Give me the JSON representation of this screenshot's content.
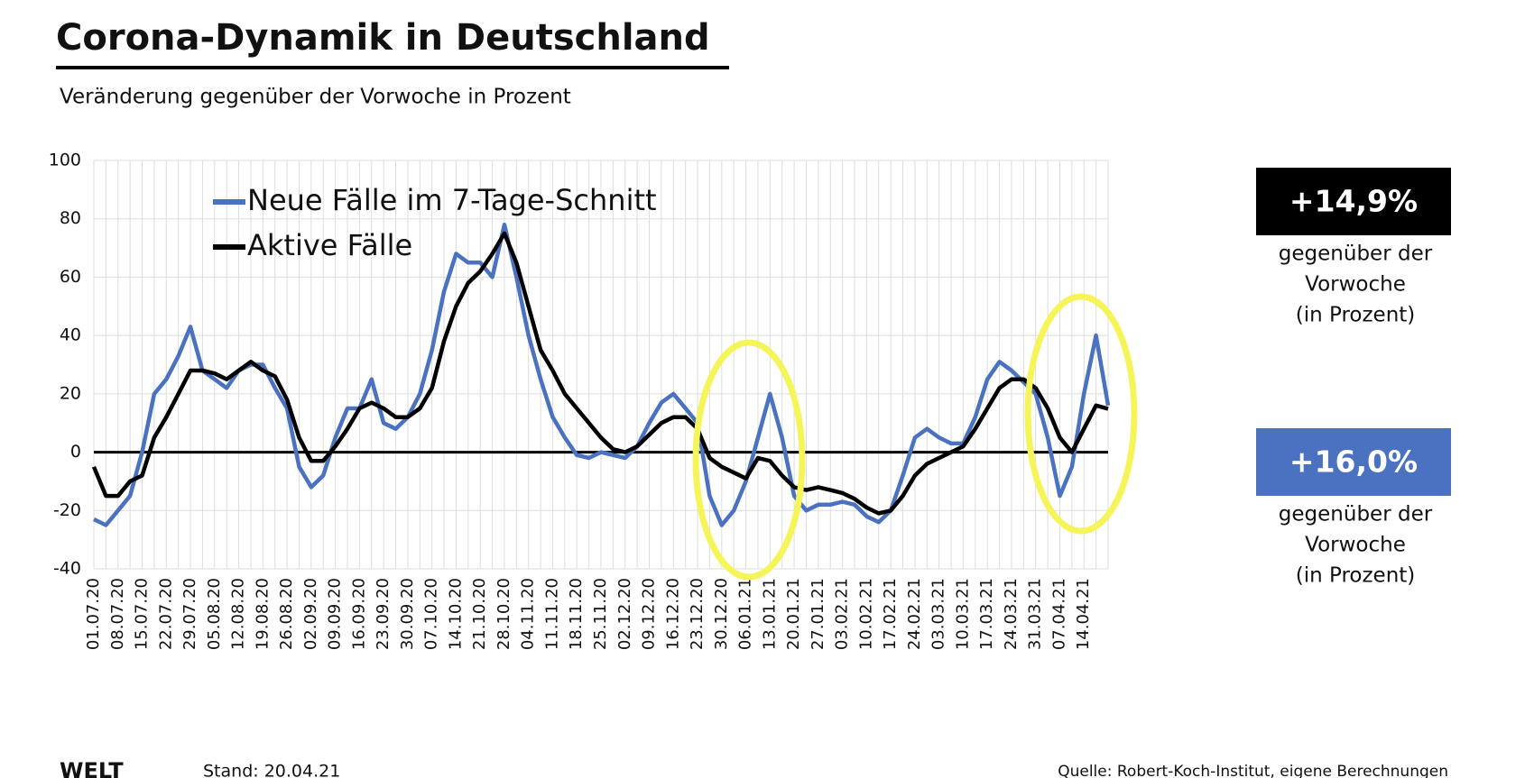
{
  "chart_data": {
    "type": "line",
    "title": "Corona-Dynamik in Deutschland",
    "subtitle": "Veränderung gegenüber der Vorwoche in Prozent",
    "categories": [
      "01.07.20",
      null,
      "08.07.20",
      null,
      "15.07.20",
      null,
      "22.07.20",
      null,
      "29.07.20",
      null,
      "05.08.20",
      null,
      "12.08.20",
      null,
      "19.08.20",
      null,
      "26.08.20",
      null,
      "02.09.20",
      null,
      "09.09.20",
      null,
      "16.09.20",
      null,
      "23.09.20",
      null,
      "30.09.20",
      null,
      "07.10.20",
      null,
      "14.10.20",
      null,
      "21.10.20",
      null,
      "28.10.20",
      null,
      "04.11.20",
      null,
      "11.11.20",
      null,
      "18.11.20",
      null,
      "25.11.20",
      null,
      "02.12.20",
      null,
      "09.12.20",
      null,
      "16.12.20",
      null,
      "23.12.20",
      null,
      "30.12.20",
      null,
      "06.01.21",
      null,
      "13.01.21",
      null,
      "20.01.21",
      null,
      "27.01.21",
      null,
      "03.02.21",
      null,
      "10.02.21",
      null,
      "17.02.21",
      null,
      "24.02.21",
      null,
      "03.03.21",
      null,
      "10.03.21",
      null,
      "17.03.21",
      null,
      "24.03.21",
      null,
      "31.03.21",
      null,
      "07.04.21",
      null,
      "14.04.21",
      null,
      null
    ],
    "series": [
      {
        "name": "Neue Fälle im 7-Tage-Schnitt",
        "color": "#4a72c0",
        "values": [
          -23,
          -25,
          -20,
          -15,
          0,
          20,
          25,
          33,
          43,
          28,
          25,
          22,
          28,
          30,
          30,
          22,
          15,
          -5,
          -12,
          -8,
          5,
          15,
          15,
          25,
          10,
          8,
          12,
          20,
          35,
          55,
          68,
          65,
          65,
          60,
          78,
          60,
          40,
          25,
          12,
          5,
          -1,
          -2,
          0,
          -1,
          -2,
          2,
          10,
          17,
          20,
          15,
          10,
          -15,
          -25,
          -20,
          -10,
          5,
          20,
          5,
          -15,
          -20,
          -18,
          -18,
          -17,
          -18,
          -22,
          -24,
          -20,
          -8,
          5,
          8,
          5,
          3,
          3,
          12,
          25,
          31,
          28,
          24,
          20,
          5,
          -15,
          -5,
          20,
          40,
          16
        ]
      },
      {
        "name": "Aktive Fälle",
        "color": "#000000",
        "values": [
          -5,
          -15,
          -15,
          -10,
          -8,
          5,
          12,
          20,
          28,
          28,
          27,
          25,
          28,
          31,
          28,
          26,
          18,
          5,
          -3,
          -3,
          2,
          8,
          15,
          17,
          15,
          12,
          12,
          15,
          22,
          38,
          50,
          58,
          62,
          68,
          75,
          65,
          50,
          35,
          28,
          20,
          15,
          10,
          5,
          1,
          0,
          2,
          6,
          10,
          12,
          12,
          8,
          -2,
          -5,
          -7,
          -9,
          -2,
          -3,
          -8,
          -12,
          -13,
          -12,
          -13,
          -14,
          -16,
          -19,
          -21,
          -20,
          -15,
          -8,
          -4,
          -2,
          0,
          2,
          8,
          15,
          22,
          25,
          25,
          22,
          15,
          5,
          0,
          8,
          16,
          14.9
        ]
      }
    ],
    "ylim": [
      -40,
      100
    ],
    "yticks": [
      -40,
      -20,
      0,
      20,
      40,
      60,
      80,
      100
    ],
    "grid": true,
    "annotations": [
      {
        "value": "+14,9%",
        "color": "#000000",
        "lines": [
          "gegenüber der",
          "Vorwoche",
          "(in Prozent)"
        ]
      },
      {
        "value": "+16,0%",
        "color": "#4a72c0",
        "lines": [
          "gegenüber der",
          "Vorwoche",
          "(in Prozent)"
        ]
      }
    ]
  },
  "footer": {
    "brand": "WELT",
    "date": "Stand:  20.04.21",
    "source": "Quelle: Robert-Koch-Institut, eigene Berechnungen"
  }
}
